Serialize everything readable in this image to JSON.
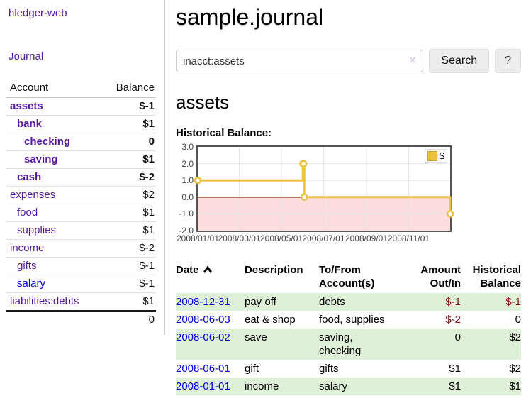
{
  "sidebar": {
    "brand": "hledger-web",
    "nav_journal": "Journal",
    "accounts_table": {
      "header_account": "Account",
      "header_balance": "Balance",
      "rows": [
        {
          "name": "assets",
          "balance": "$-1",
          "level": 0,
          "bold": true,
          "negative": true
        },
        {
          "name": "bank",
          "balance": "$1",
          "level": 1,
          "bold": true,
          "negative": false
        },
        {
          "name": "checking",
          "balance": "0",
          "level": 2,
          "bold": true,
          "negative": false
        },
        {
          "name": "saving",
          "balance": "$1",
          "level": 2,
          "bold": true,
          "negative": false
        },
        {
          "name": "cash",
          "balance": "$-2",
          "level": 1,
          "bold": true,
          "negative": true
        },
        {
          "name": "expenses",
          "balance": "$2",
          "level": 0,
          "bold": false,
          "negative": false
        },
        {
          "name": "food",
          "balance": "$1",
          "level": 1,
          "bold": false,
          "negative": false
        },
        {
          "name": "supplies",
          "balance": "$1",
          "level": 1,
          "bold": false,
          "negative": false
        },
        {
          "name": "income",
          "balance": "$-2",
          "level": 0,
          "bold": false,
          "negative": true
        },
        {
          "name": "gifts",
          "balance": "$-1",
          "level": 1,
          "bold": false,
          "negative": true
        },
        {
          "name": "salary",
          "balance": "$-1",
          "level": 1,
          "bold": false,
          "negative": true,
          "link": "blue"
        },
        {
          "name": "liabilities:debts",
          "balance": "$1",
          "level": 0,
          "bold": false,
          "negative": false
        }
      ],
      "total": "0"
    }
  },
  "main": {
    "title": "sample.journal",
    "search": {
      "value": "inacct:assets",
      "clear_icon": "✕",
      "button": "Search",
      "help": "?"
    },
    "account_heading": "assets",
    "section_label": "Historical Balance:"
  },
  "chart_data": {
    "type": "line",
    "title": "Historical Balance",
    "xrange": [
      "2008-01-01",
      "2008-12-31"
    ],
    "ylim": [
      -2,
      3
    ],
    "x_ticks": [
      {
        "date": "2008-01-01",
        "label": "2008/01/01"
      },
      {
        "date": "2008-03-01",
        "label": "2008/03/01"
      },
      {
        "date": "2008-05-01",
        "label": "2008/05/01"
      },
      {
        "date": "2008-07-01",
        "label": "2008/07/01"
      },
      {
        "date": "2008-09-01",
        "label": "2008/09/01"
      },
      {
        "date": "2008-11-01",
        "label": "2008/11/01"
      }
    ],
    "y_ticks": [
      {
        "value": 3,
        "label": "3.0"
      },
      {
        "value": 2,
        "label": "2.0"
      },
      {
        "value": 1,
        "label": "1.0"
      },
      {
        "value": 0,
        "label": "0.0"
      },
      {
        "value": -1,
        "label": "-1.0"
      },
      {
        "value": -2,
        "label": "-2.0"
      }
    ],
    "series": [
      {
        "name": "$",
        "color": "#EDC240",
        "step": true,
        "points": [
          [
            "2008-01-01",
            1
          ],
          [
            "2008-06-01",
            2
          ],
          [
            "2008-06-02",
            2
          ],
          [
            "2008-06-03",
            0
          ],
          [
            "2008-12-31",
            -1
          ]
        ]
      }
    ],
    "legend": {
      "label": "$",
      "position": "top-right"
    },
    "grid": true,
    "negative_fill": "#fcdede",
    "zero_line_color": "#8b0000"
  },
  "transactions_table": {
    "headers": {
      "date": "Date",
      "description": "Description",
      "tofrom_line1": "To/From",
      "tofrom_line2": "Account(s)",
      "amount_line1": "Amount",
      "amount_line2": "Out/In",
      "balance_line1": "Historical",
      "balance_line2": "Balance"
    },
    "sort_icon": "chevron-up",
    "rows": [
      {
        "date": "2008-12-31",
        "description": "pay off",
        "accounts": "debts",
        "amount": "$-1",
        "amount_negative": true,
        "balance": "$-1",
        "balance_negative": true
      },
      {
        "date": "2008-06-03",
        "description": "eat & shop",
        "accounts": "food, supplies",
        "amount": "$-2",
        "amount_negative": true,
        "balance": "0",
        "balance_negative": false
      },
      {
        "date": "2008-06-02",
        "description": "save",
        "accounts": "saving,\nchecking",
        "amount": "0",
        "amount_negative": false,
        "balance": "$2",
        "balance_negative": false
      },
      {
        "date": "2008-06-01",
        "description": "gift",
        "accounts": "gifts",
        "amount": "$1",
        "amount_negative": false,
        "balance": "$2",
        "balance_negative": false
      },
      {
        "date": "2008-01-01",
        "description": "income",
        "accounts": "salary",
        "amount": "$1",
        "amount_negative": false,
        "balance": "$1",
        "balance_negative": false
      }
    ]
  },
  "colors": {
    "link_purple": "#551a9b",
    "link_blue": "#0000e0",
    "negative_red": "#801515",
    "negative_soft_red": "#b07070",
    "row_highlight_green": "#dff0d8",
    "chart_line_yellow": "#EDC240",
    "chart_negative_fill": "#fcdede",
    "chart_zero_line": "#8b0000"
  }
}
